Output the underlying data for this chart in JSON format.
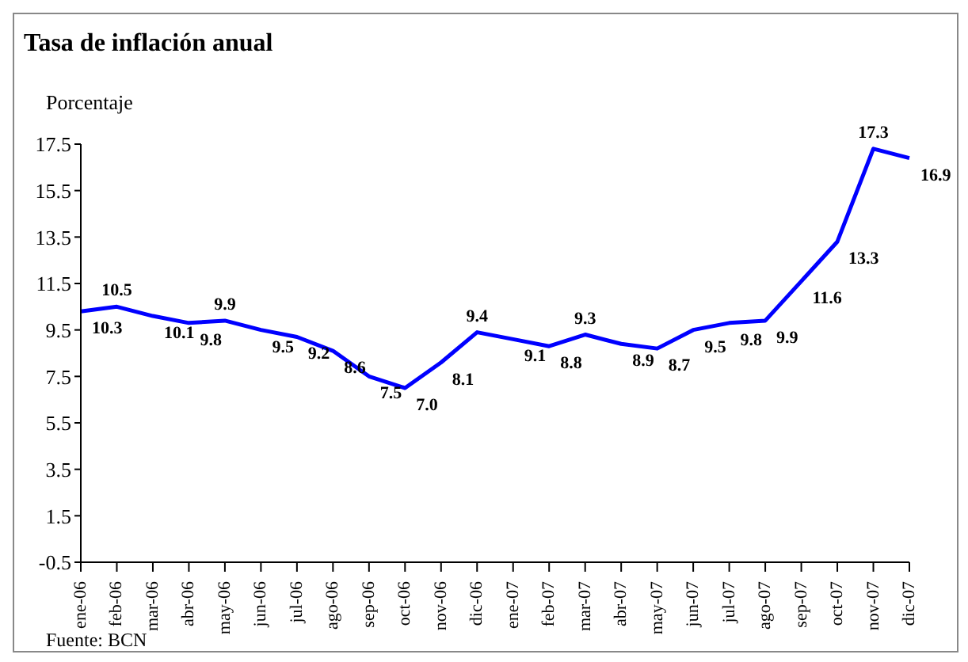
{
  "chart_data": {
    "type": "line",
    "title": "Tasa de inflación anual",
    "ylabel": "Porcentaje",
    "categories": [
      "ene-06",
      "feb-06",
      "mar-06",
      "abr-06",
      "may-06",
      "jun-06",
      "jul-06",
      "ago-06",
      "sep-06",
      "oct-06",
      "nov-06",
      "dic-06",
      "ene-07",
      "feb-07",
      "mar-07",
      "abr-07",
      "may-07",
      "jun-07",
      "jul-07",
      "ago-07",
      "sep-07",
      "oct-07",
      "nov-07",
      "dic-07"
    ],
    "series": [
      {
        "color": "#0000ff",
        "values": [
          10.3,
          10.5,
          10.1,
          9.8,
          9.9,
          9.5,
          9.2,
          8.6,
          7.5,
          7.0,
          8.1,
          9.4,
          9.1,
          8.8,
          9.3,
          8.9,
          8.7,
          9.5,
          9.8,
          9.9,
          11.6,
          13.3,
          17.3,
          16.9
        ],
        "value_labels": [
          "10.3",
          "10.5",
          "10.1",
          "9.8",
          "9.9",
          "9.5",
          "9.2",
          "8.6",
          "7.5",
          "7.0",
          "8.1",
          "9.4",
          "9.1",
          "8.8",
          "9.3",
          "8.9",
          "8.7",
          "9.5",
          "9.8",
          "9.9",
          "11.6",
          "13.3",
          "17.3",
          "16.9"
        ]
      }
    ],
    "ylim": [
      -0.5,
      17.5
    ],
    "yticks": [
      -0.5,
      1.5,
      3.5,
      5.5,
      7.5,
      9.5,
      11.5,
      13.5,
      15.5,
      17.5
    ],
    "grid": false,
    "legend": false,
    "marker": "none",
    "line_style": "solid",
    "annotations": [
      "Fuente: BCN"
    ]
  }
}
